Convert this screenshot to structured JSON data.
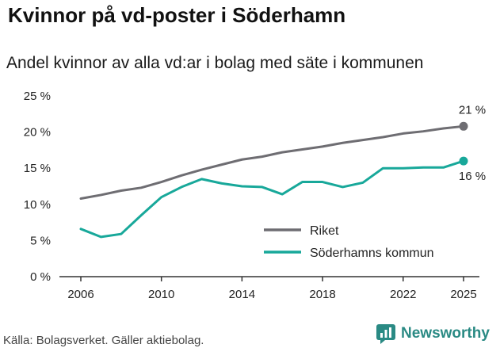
{
  "header": {
    "title": "Kvinnor på vd-poster i Söderhamn",
    "subtitle": "Andel kvinnor av alla vd:ar i bolag med säte i kommunen"
  },
  "footer": {
    "source": "Källa: Bolagsverket. Gäller aktiebolag.",
    "brand": "Newsworthy"
  },
  "colors": {
    "riket": "#6e6d72",
    "kommun": "#18a89a",
    "brand": "#2a8a84"
  },
  "chart_data": {
    "type": "line",
    "title": "Kvinnor på vd-poster i Söderhamn",
    "subtitle": "Andel kvinnor av alla vd:ar i bolag med säte i kommunen",
    "xlabel": "",
    "ylabel": "",
    "x": [
      2006,
      2007,
      2008,
      2009,
      2010,
      2011,
      2012,
      2013,
      2014,
      2015,
      2016,
      2017,
      2018,
      2019,
      2020,
      2021,
      2022,
      2023,
      2024,
      2025
    ],
    "x_ticks": [
      "2006",
      "2010",
      "2014",
      "2018",
      "2022",
      "2025"
    ],
    "y_ticks": [
      "0 %",
      "5 %",
      "10 %",
      "15 %",
      "20 %",
      "25 %"
    ],
    "ylim": [
      0,
      25
    ],
    "grid": false,
    "legend_position": "bottom-right",
    "series": [
      {
        "name": "Riket",
        "values": [
          10.8,
          11.3,
          11.9,
          12.3,
          13.1,
          14.0,
          14.8,
          15.5,
          16.2,
          16.6,
          17.2,
          17.6,
          18.0,
          18.5,
          18.9,
          19.3,
          19.8,
          20.1,
          20.5,
          20.8
        ],
        "end_label": "21 %"
      },
      {
        "name": "Söderhamns kommun",
        "values": [
          6.6,
          5.5,
          5.9,
          8.5,
          11.0,
          12.4,
          13.5,
          12.9,
          12.5,
          12.4,
          11.4,
          13.1,
          13.1,
          12.4,
          13.0,
          15.0,
          15.0,
          15.1,
          15.1,
          16.0
        ],
        "end_label": "16 %"
      }
    ]
  }
}
